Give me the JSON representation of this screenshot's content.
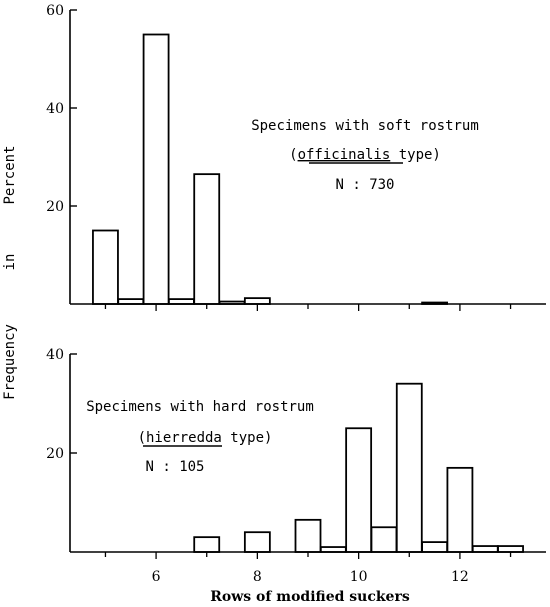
{
  "chart_data": [
    {
      "type": "bar",
      "panel": "top",
      "annotation": {
        "line1": "Specimens with soft rostrum",
        "line2_open": "(",
        "line2_term": "officinalis",
        "line2_close": " type)",
        "line3": "N : 730"
      },
      "ylim": [
        0,
        60
      ],
      "yticks": [
        "60",
        "40",
        "20"
      ],
      "ytick_values": [
        60,
        40,
        20
      ],
      "x": [
        5,
        5.5,
        6,
        6.5,
        7,
        7.5,
        8,
        8.5,
        9,
        9.5,
        10,
        10.5,
        11,
        11.5,
        12
      ],
      "values": [
        15,
        1,
        55,
        1,
        26.5,
        0.5,
        1.2,
        0,
        0,
        0,
        0,
        0,
        0,
        0.3,
        0
      ]
    },
    {
      "type": "bar",
      "panel": "bottom",
      "annotation": {
        "line1": "Specimens with hard rostrum",
        "line2_open": "(",
        "line2_term": "hierredda",
        "line2_close": " type)",
        "line3": "N : 105"
      },
      "ylim": [
        0,
        40
      ],
      "yticks": [
        "40",
        "20"
      ],
      "ytick_values": [
        40,
        20
      ],
      "x": [
        5,
        5.5,
        6,
        6.5,
        7,
        7.5,
        8,
        8.5,
        9,
        9.5,
        10,
        10.5,
        11,
        11.5,
        12,
        12.5,
        13
      ],
      "values": [
        0,
        0,
        0,
        0,
        3,
        0,
        4,
        0,
        6.5,
        1,
        25,
        5,
        34,
        2,
        17,
        1.2,
        1.2
      ]
    }
  ],
  "x_axis": {
    "xlabel": "Rows of modified suckers",
    "xticks": [
      "6",
      "8",
      "10",
      "12"
    ],
    "xtick_values": [
      6,
      8,
      10,
      12
    ],
    "xlim": [
      4.3,
      13.7
    ]
  },
  "y_axis_label": {
    "words": [
      "Frequency",
      "in",
      "Percent"
    ]
  }
}
